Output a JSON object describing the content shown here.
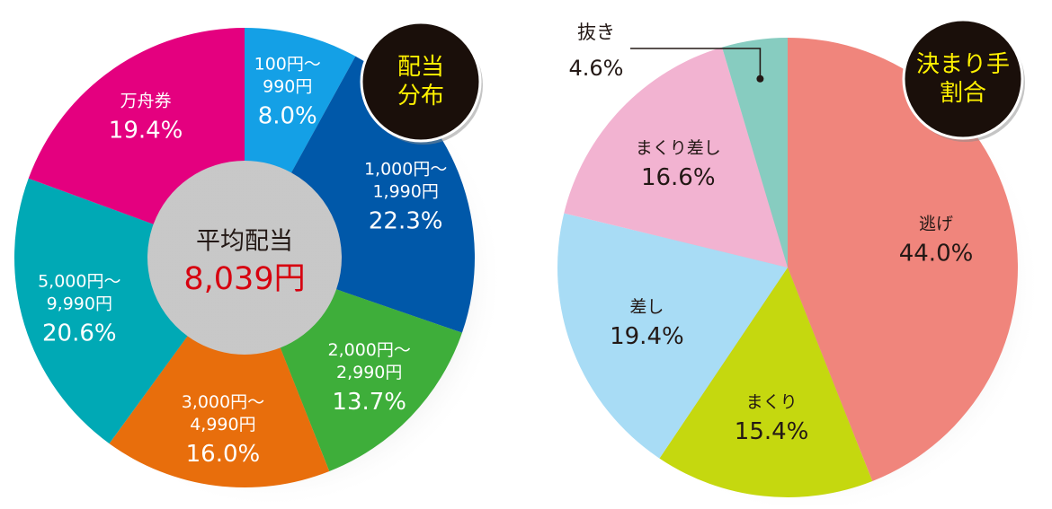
{
  "chart_data": [
    {
      "type": "pie",
      "variant": "donut",
      "badge": [
        "配当",
        "分布"
      ],
      "center_label": "平均配当",
      "center_value": "8,039円",
      "slices": [
        {
          "lines": [
            "100円〜",
            "990円"
          ],
          "percent_label": "8.0%",
          "value": 8.0,
          "color": "#14a0e6"
        },
        {
          "lines": [
            "1,000円〜",
            "1,990円"
          ],
          "percent_label": "22.3%",
          "value": 22.3,
          "color": "#0058a9"
        },
        {
          "lines": [
            "2,000円〜",
            "2,990円"
          ],
          "percent_label": "13.7%",
          "value": 13.7,
          "color": "#3eae3a"
        },
        {
          "lines": [
            "3,000円〜",
            "4,990円"
          ],
          "percent_label": "16.0%",
          "value": 16.0,
          "color": "#e86e0c"
        },
        {
          "lines": [
            "5,000円〜",
            "9,990円"
          ],
          "percent_label": "20.6%",
          "value": 20.6,
          "color": "#00a9b5"
        },
        {
          "lines": [
            "万舟券"
          ],
          "percent_label": "19.4%",
          "value": 19.4,
          "color": "#e4007f"
        }
      ]
    },
    {
      "type": "pie",
      "badge": [
        "決まり手",
        "割合"
      ],
      "slices": [
        {
          "lines": [
            "逃げ"
          ],
          "percent_label": "44.0%",
          "value": 44.0,
          "color": "#f0857c"
        },
        {
          "lines": [
            "まくり"
          ],
          "percent_label": "15.4%",
          "value": 15.4,
          "color": "#c5d80f"
        },
        {
          "lines": [
            "差し"
          ],
          "percent_label": "19.4%",
          "value": 19.4,
          "color": "#a8dcf5"
        },
        {
          "lines": [
            "まくり差し"
          ],
          "percent_label": "16.6%",
          "value": 16.6,
          "color": "#f2b3d1"
        },
        {
          "lines": [
            "抜き"
          ],
          "percent_label": "4.6%",
          "value": 4.6,
          "color": "#87ccc0",
          "callout": true
        }
      ]
    }
  ]
}
